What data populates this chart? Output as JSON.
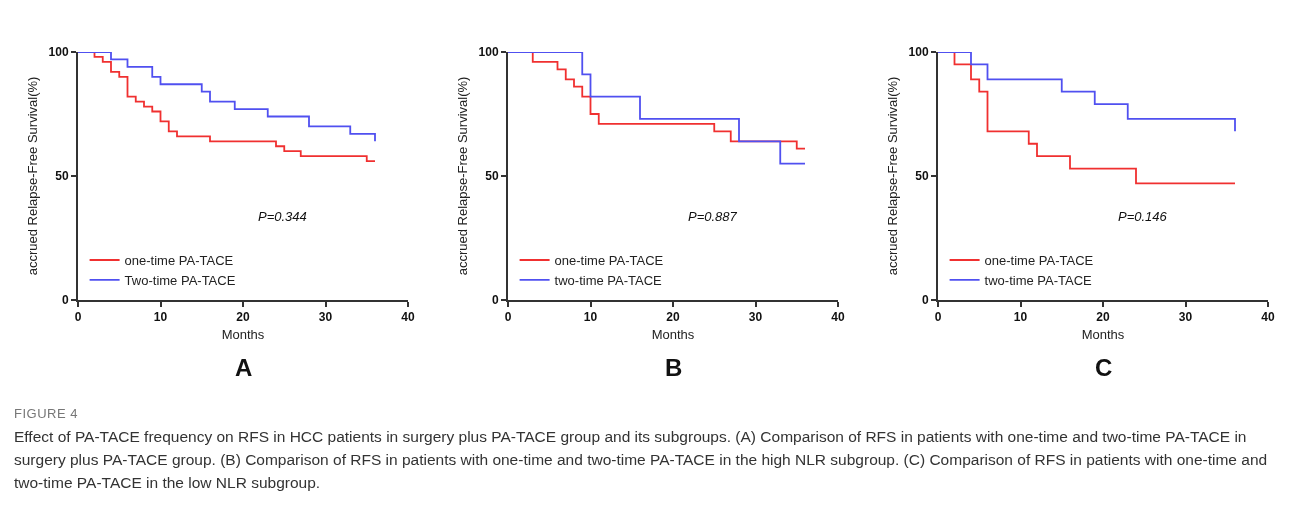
{
  "chart_data": [
    {
      "type": "step",
      "xlabel": "Months",
      "ylabel": "accrued Relapse-Free Survival(%)",
      "xlim": [
        0,
        40
      ],
      "xticks": [
        0,
        10,
        20,
        30,
        40
      ],
      "ylim": [
        0,
        100
      ],
      "yticks": [
        0,
        50,
        100
      ],
      "grid": false,
      "legend": "bottom left",
      "marker": "none",
      "line_style": "solid",
      "series": [
        {
          "name": "one-time PA-TACE",
          "color": "#f03030",
          "x": [
            0,
            2,
            3,
            4,
            5,
            6,
            7,
            8,
            9,
            10,
            11,
            12,
            16,
            24,
            25,
            27,
            35,
            36
          ],
          "values": [
            100,
            98,
            96,
            92,
            90,
            82,
            80,
            78,
            76,
            72,
            68,
            66,
            64,
            62,
            60,
            58,
            56,
            56
          ]
        },
        {
          "name": "Two-time PA-TACE",
          "color": "#5050f0",
          "x": [
            0,
            4,
            6,
            9,
            10,
            15,
            16,
            19,
            23,
            28,
            33,
            36
          ],
          "values": [
            100,
            97,
            94,
            90,
            87,
            84,
            80,
            77,
            74,
            70,
            67,
            64
          ]
        }
      ],
      "annotations": [
        "P=0.344",
        "A",
        "FIGURE 4",
        "Effect of PA-TACE frequency on RFS in HCC patients in surgery plus PA-TACE group and its subgroups. (A) Comparison of RFS in patients with one-time and two-time PA-TACE in surgery plus PA-TACE group. (B) Comparison of RFS in patients with one-time and two-time PA-TACE in the high NLR subgroup. (C) Comparison of RFS in patients with one-time and two-time PA-TACE in the low NLR subgroup."
      ]
    },
    {
      "type": "step",
      "xlabel": "Months",
      "ylabel": "accrued Relapse-Free Survival(%)",
      "xlim": [
        0,
        40
      ],
      "xticks": [
        0,
        10,
        20,
        30,
        40
      ],
      "ylim": [
        0,
        100
      ],
      "yticks": [
        0,
        50,
        100
      ],
      "grid": false,
      "legend": "bottom left",
      "marker": "none",
      "line_style": "solid",
      "series": [
        {
          "name": "one-time PA-TACE",
          "color": "#f03030",
          "x": [
            0,
            3,
            6,
            7,
            8,
            9,
            10,
            11,
            25,
            27,
            35,
            36
          ],
          "values": [
            100,
            96,
            93,
            89,
            86,
            82,
            75,
            71,
            68,
            64,
            61,
            61
          ]
        },
        {
          "name": "two-time PA-TACE",
          "color": "#5050f0",
          "x": [
            0,
            9,
            10,
            16,
            28,
            33,
            36
          ],
          "values": [
            100,
            91,
            82,
            73,
            64,
            55,
            55
          ]
        }
      ],
      "annotations": [
        "P=0.887",
        "B"
      ]
    },
    {
      "type": "step",
      "xlabel": "Months",
      "ylabel": "accrued Relapse-Free Survival(%)",
      "xlim": [
        0,
        40
      ],
      "xticks": [
        0,
        10,
        20,
        30,
        40
      ],
      "ylim": [
        0,
        100
      ],
      "yticks": [
        0,
        50,
        100
      ],
      "grid": false,
      "legend": "bottom left",
      "marker": "none",
      "line_style": "solid",
      "series": [
        {
          "name": "one-time PA-TACE",
          "color": "#f03030",
          "x": [
            0,
            2,
            4,
            5,
            6,
            11,
            12,
            16,
            24,
            36
          ],
          "values": [
            100,
            95,
            89,
            84,
            68,
            63,
            58,
            53,
            47,
            47
          ]
        },
        {
          "name": "two-time PA-TACE",
          "color": "#5050f0",
          "x": [
            0,
            4,
            6,
            15,
            19,
            23,
            36
          ],
          "values": [
            100,
            95,
            89,
            84,
            79,
            73,
            68
          ]
        }
      ],
      "annotations": [
        "P=0.146",
        "C"
      ]
    }
  ]
}
